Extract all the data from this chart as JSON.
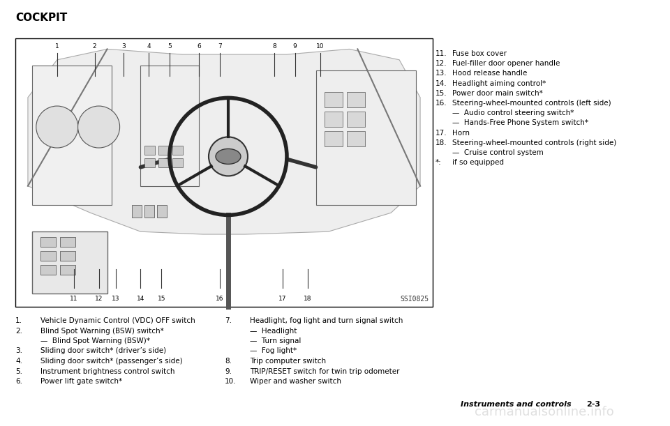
{
  "background_color": "#ffffff",
  "title": "COCKPIT",
  "title_fontsize": 11,
  "title_fontweight": "bold",
  "ssi_label": "SSI0825",
  "left_items": [
    [
      "1.",
      "Vehicle Dynamic Control (VDC) OFF switch"
    ],
    [
      "2.",
      "Blind Spot Warning (BSW) switch*"
    ],
    [
      "",
      "—  Blind Spot Warning (BSW)*"
    ],
    [
      "3.",
      "Sliding door switch* (driver’s side)"
    ],
    [
      "4.",
      "Sliding door switch* (passenger’s side)"
    ],
    [
      "5.",
      "Instrument brightness control switch"
    ],
    [
      "6.",
      "Power lift gate switch*"
    ]
  ],
  "mid_items": [
    [
      "7.",
      "Headlight, fog light and turn signal switch"
    ],
    [
      "",
      "—  Headlight"
    ],
    [
      "",
      "—  Turn signal"
    ],
    [
      "",
      "—  Fog light*"
    ],
    [
      "8.",
      "Trip computer switch"
    ],
    [
      "9.",
      "TRIP/RESET switch for twin trip odometer"
    ],
    [
      "10.",
      "Wiper and washer switch"
    ]
  ],
  "right_items": [
    [
      "11.",
      "Fuse box cover"
    ],
    [
      "12.",
      "Fuel-filler door opener handle"
    ],
    [
      "13.",
      "Hood release handle"
    ],
    [
      "14.",
      "Headlight aiming control*"
    ],
    [
      "15.",
      "Power door main switch*"
    ],
    [
      "16.",
      "Steering-wheel-mounted controls (left side)"
    ],
    [
      "",
      "—  Audio control steering switch*"
    ],
    [
      "",
      "—  Hands-Free Phone System switch*"
    ],
    [
      "17.",
      "Horn"
    ],
    [
      "18.",
      "Steering-wheel-mounted controls (right side)"
    ],
    [
      "",
      "—  Cruise control system"
    ],
    [
      "*:",
      "if so equipped"
    ]
  ],
  "footer_label": "Instruments and controls",
  "footer_page": "2-3",
  "watermark": "carmanualsonline.info",
  "text_color": "#000000",
  "body_fontsize": 7.5,
  "line_color": "#333333",
  "img_bg": "#ffffff"
}
